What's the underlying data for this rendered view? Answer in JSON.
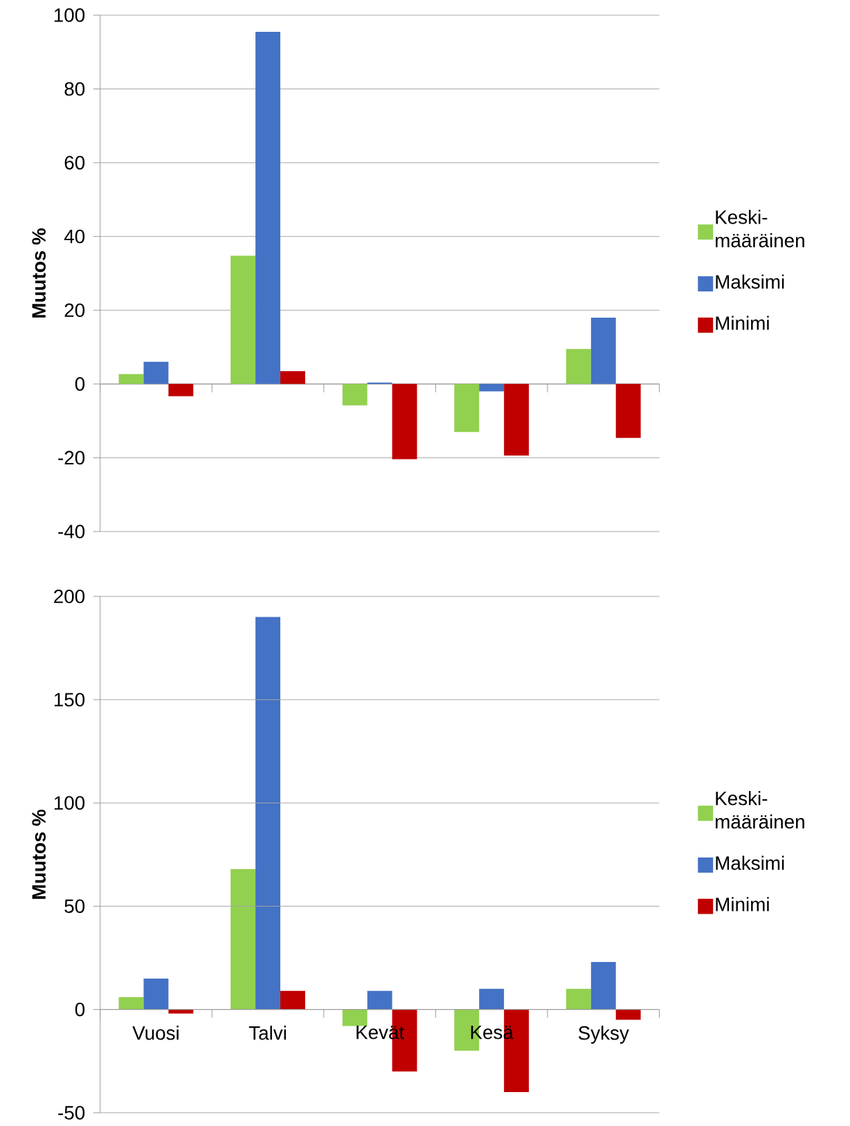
{
  "chart_data": [
    {
      "type": "bar",
      "ylabel": "Muutos %",
      "categories": [
        null,
        null,
        null,
        null,
        null
      ],
      "tick_labels": "y",
      "series": [
        {
          "name": "Keski-määräinen",
          "color": "#92d050",
          "values": [
            2.7,
            34.8,
            -5.8,
            -13,
            9.5
          ]
        },
        {
          "name": "Maksimi",
          "color": "#4472c4",
          "values": [
            6,
            95.5,
            0.4,
            -2,
            18
          ]
        },
        {
          "name": "Minimi",
          "color": "#c00000",
          "values": [
            -3.3,
            3.5,
            -20.4,
            -19.4,
            -14.6
          ]
        }
      ],
      "ylim": [
        -40,
        100
      ],
      "yticks": [
        -40,
        -20,
        0,
        20,
        40,
        60,
        80,
        100
      ],
      "grid": "y",
      "legend": "right"
    },
    {
      "type": "bar",
      "ylabel": "Muutos %",
      "categories": [
        "Vuosi",
        "Talvi",
        "Kevät",
        "Kesä",
        "Syksy"
      ],
      "series": [
        {
          "name": "Keski-määräinen",
          "color": "#92d050",
          "values": [
            6,
            68,
            -8,
            -20,
            10
          ]
        },
        {
          "name": "Maksimi",
          "color": "#4472c4",
          "values": [
            15,
            190,
            9,
            10,
            23
          ]
        },
        {
          "name": "Minimi",
          "color": "#c00000",
          "values": [
            -2,
            9,
            -30,
            -40,
            -5
          ]
        }
      ],
      "ylim": [
        -50,
        200
      ],
      "yticks": [
        -50,
        0,
        50,
        100,
        150,
        200
      ],
      "grid": "y",
      "legend": "right"
    }
  ]
}
